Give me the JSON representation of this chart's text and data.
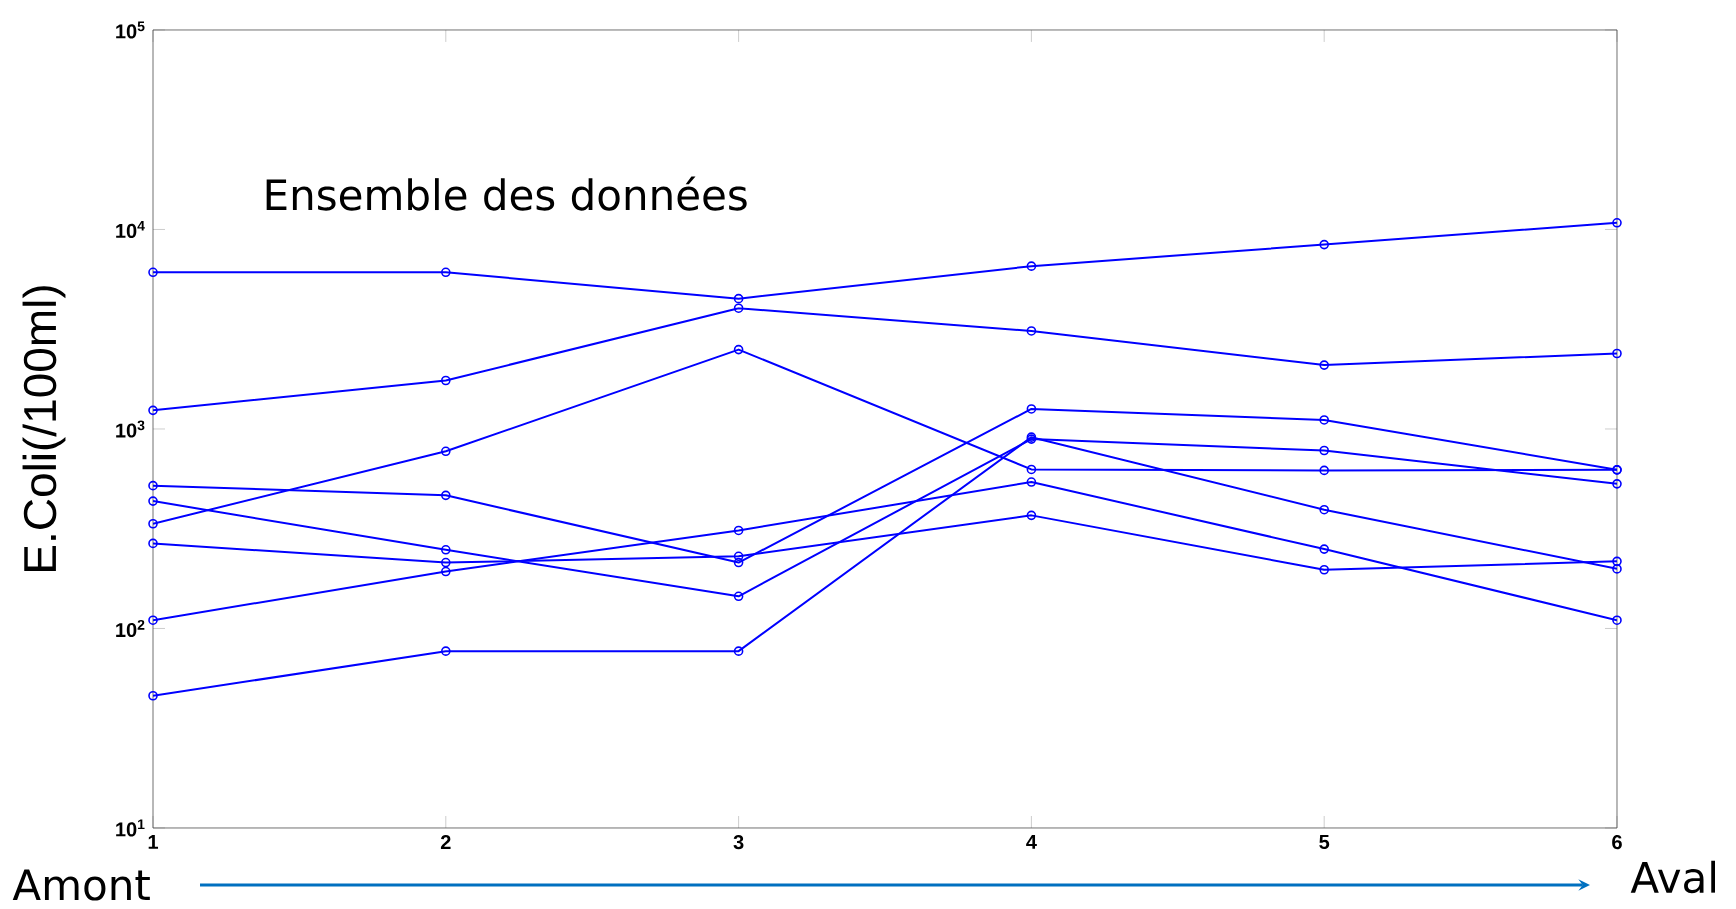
{
  "chart_data": {
    "type": "line",
    "title": "Ensemble des données",
    "ylabel": "E.Coli(/100ml)",
    "annotations": [
      "Amont",
      "Aval"
    ],
    "x": [
      1,
      2,
      3,
      4,
      5,
      6
    ],
    "xlim": [
      1,
      6
    ],
    "xticks": [
      1,
      2,
      3,
      4,
      5,
      6
    ],
    "ylim": [
      10,
      100000
    ],
    "log": true,
    "yticks": [
      {
        "value": 10,
        "label": "10$^{1}$"
      },
      {
        "value": 100,
        "label": "10$^{2}$"
      },
      {
        "value": 1000,
        "label": "10$^{3}$"
      },
      {
        "value": 10000,
        "label": "10$^{4}$"
      },
      {
        "value": 100000,
        "label": "10$^{5}$"
      }
    ],
    "marker": "circle",
    "line_style": "solid",
    "series": [
      {
        "color": "#0000ff",
        "values": [
          6100,
          6100,
          4500,
          6550,
          8400,
          10800
        ]
      },
      {
        "color": "#0000ff",
        "values": [
          1240,
          1750,
          4030,
          3100,
          2090,
          2390
        ]
      },
      {
        "color": "#0000ff",
        "values": [
          335,
          773,
          2500,
          627,
          620,
          624
        ]
      },
      {
        "color": "#0000ff",
        "values": [
          520,
          465,
          214,
          1260,
          1110,
          624
        ]
      },
      {
        "color": "#0000ff",
        "values": [
          267,
          214,
          230,
          369,
          197,
          217
        ]
      },
      {
        "color": "#0000ff",
        "values": [
          110,
          193,
          310,
          542,
          250,
          110
        ]
      },
      {
        "color": "#0000ff",
        "values": [
          435,
          248,
          145,
          890,
          780,
          531
        ]
      },
      {
        "color": "#0000ff",
        "values": [
          46,
          77,
          77,
          910,
          394,
          199
        ]
      }
    ]
  }
}
